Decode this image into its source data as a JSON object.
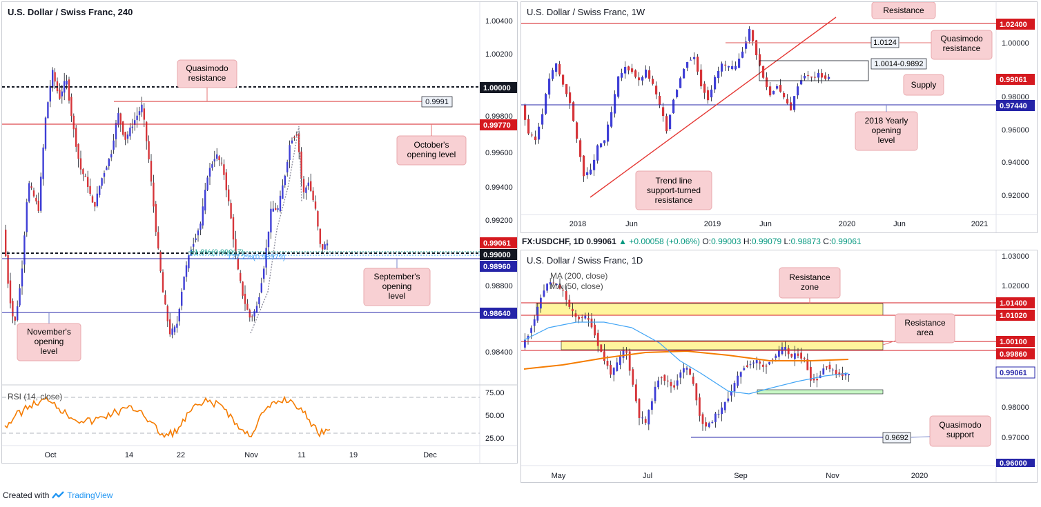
{
  "colors": {
    "up": "#3f3fd6",
    "down": "#d6353a",
    "red_level": "#d5191f",
    "blue_level": "#2524a8",
    "callout_bg": "#f8d0d3",
    "callout_border": "#e8a8ad",
    "zone_yellow": "#fff59d",
    "zone_green": "#c8f7c5",
    "rsi": "#f57c00",
    "ma200": "#f57c00",
    "ma50": "#42a5f5",
    "tv_blue": "#2196f3"
  },
  "p1": {
    "title": "U.S. Dollar / Swiss Franc, 240",
    "y_ticks": [
      "1.00400",
      "1.00200",
      "0.99800",
      "0.99600",
      "0.99400",
      "0.99200",
      "0.98800",
      "0.98400"
    ],
    "x_ticks": [
      "Oct",
      "14",
      "22",
      "Nov",
      "11",
      "19",
      "Dec"
    ],
    "tags": {
      "t1": "1.00000",
      "t2": "0.99770",
      "t3": "0.99061",
      "t4": "0.99000",
      "t5": "0.98960",
      "t6": "0.98640"
    },
    "box_label": "0.9991",
    "fib_label1": "61.8%(0.99017)",
    "fib_label2": "127.2%(0.98979)",
    "callouts": {
      "qm_a": "Quasimodo",
      "qm_b": "resistance",
      "oct_a": "October's",
      "oct_b": "opening level",
      "sep_a": "September's",
      "sep_b": "opening",
      "sep_c": "level",
      "nov_a": "November's",
      "nov_b": "opening",
      "nov_c": "level"
    },
    "rsi_label": "RSI (14, close)",
    "rsi_ticks": [
      "75.00",
      "50.00",
      "25.00"
    ]
  },
  "p2": {
    "title": "U.S. Dollar / Swiss Franc, 1W",
    "y_ticks": [
      "1.00000",
      "0.98000",
      "0.96000",
      "0.94000",
      "0.92000"
    ],
    "x_ticks": [
      "2018",
      "Jun",
      "2019",
      "Jun",
      "2020",
      "Jun",
      "2021"
    ],
    "tags": {
      "t1": "1.02400",
      "t2": "0.99061",
      "t3": "0.97440"
    },
    "box1": "1.0124",
    "box2": "1.0014-0.9892",
    "callouts": {
      "res": "Resistance",
      "qm_a": "Quasimodo",
      "qm_b": "resistance",
      "sup": "Supply",
      "yr_a": "2018 Yearly",
      "yr_b": "opening",
      "yr_c": "level",
      "tl_a": "Trend line",
      "tl_b": "support-turned",
      "tl_c": "resistance"
    }
  },
  "ohlc": {
    "symbol": "FX:USDCHF, 1D",
    "price": "0.99061",
    "change": "▲ +0.00058 (+0.06%)",
    "o_label": "O:",
    "o": "0.99003",
    "h_label": "H:",
    "h": "0.99079",
    "l_label": "L:",
    "l": "0.98873",
    "c_label": "C:",
    "c": "0.99061"
  },
  "p3": {
    "title": "U.S. Dollar / Swiss Franc, 1D",
    "ma1": "MA (200, close)",
    "ma2": "MA (50, close)",
    "y_ticks": [
      "1.03000",
      "1.02000",
      "0.98000",
      "0.97000"
    ],
    "x_ticks": [
      "May",
      "Jul",
      "Sep",
      "Nov",
      "2020"
    ],
    "tags": {
      "t1": "1.01400",
      "t2": "1.01020",
      "t3": "1.00100",
      "t4": "0.99860",
      "t5": "0.99061",
      "t6": "0.96000"
    },
    "box_label": "0.9692",
    "callouts": {
      "rz_a": "Resistance",
      "rz_b": "zone",
      "ra_a": "Resistance",
      "ra_b": "area",
      "qm_a": "Quasimodo",
      "qm_b": "support"
    }
  },
  "footer": {
    "created": "Created with",
    "brand": "TradingView"
  }
}
